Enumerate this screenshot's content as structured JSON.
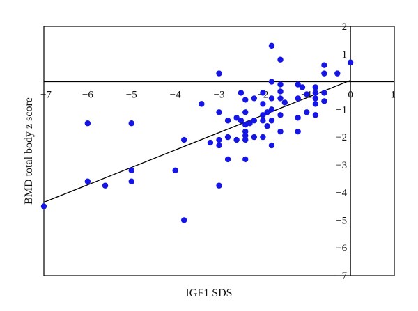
{
  "chart_data": {
    "type": "scatter",
    "xlabel": "IGF1 SDS",
    "ylabel": "BMD total body z score",
    "xlim": [
      -7,
      1
    ],
    "ylim": [
      -7,
      2
    ],
    "x_ticks": [
      -7,
      -6,
      -5,
      -4,
      -3,
      -2,
      -1,
      0,
      1
    ],
    "y_ticks": [
      2,
      1,
      -1,
      -2,
      -3,
      -4,
      -5,
      -6,
      -7
    ],
    "grid": false,
    "legend": "none",
    "colors": {
      "points": "#1515e6",
      "line": "#000000",
      "axes": "#000000"
    },
    "trendline": {
      "x": [
        -7,
        0
      ],
      "y": [
        -4.35,
        0.05
      ]
    },
    "points": [
      [
        -7,
        -4.5
      ],
      [
        -6,
        -1.5
      ],
      [
        -6,
        -3.6
      ],
      [
        -5.6,
        -3.75
      ],
      [
        -5,
        -1.5
      ],
      [
        -5,
        -3.2
      ],
      [
        -5,
        -3.6
      ],
      [
        -4,
        -3.2
      ],
      [
        -3.8,
        -2.1
      ],
      [
        -3.8,
        -5
      ],
      [
        -3.4,
        -0.8
      ],
      [
        -3.2,
        -2.2
      ],
      [
        -3,
        0.3
      ],
      [
        -3,
        -1.1
      ],
      [
        -3,
        -2.1
      ],
      [
        -3,
        -2.3
      ],
      [
        -3,
        -3.75
      ],
      [
        -2.8,
        -1.4
      ],
      [
        -2.8,
        -2
      ],
      [
        -2.8,
        -2.8
      ],
      [
        -2.6,
        -1.3
      ],
      [
        -2.6,
        -2.1
      ],
      [
        -2.5,
        -0.4
      ],
      [
        -2.5,
        -1.4
      ],
      [
        -2.4,
        -0.65
      ],
      [
        -2.4,
        -1.1
      ],
      [
        -2.4,
        -1.55
      ],
      [
        -2.4,
        -1.8
      ],
      [
        -2.4,
        -1.95
      ],
      [
        -2.4,
        -2.1
      ],
      [
        -2.4,
        -2.8
      ],
      [
        -2.3,
        -1.5
      ],
      [
        -2.2,
        -0.6
      ],
      [
        -2.2,
        -1.4
      ],
      [
        -2.2,
        -2
      ],
      [
        -2,
        -0.4
      ],
      [
        -2,
        -0.8
      ],
      [
        -2,
        -1.2
      ],
      [
        -2,
        -1.4
      ],
      [
        -2,
        -2
      ],
      [
        -1.9,
        -1.1
      ],
      [
        -1.9,
        -1.6
      ],
      [
        -1.8,
        1.3
      ],
      [
        -1.8,
        0
      ],
      [
        -1.8,
        -0.6
      ],
      [
        -1.8,
        -1
      ],
      [
        -1.8,
        -1.4
      ],
      [
        -1.8,
        -2.3
      ],
      [
        -1.6,
        0.8
      ],
      [
        -1.6,
        -0.1
      ],
      [
        -1.6,
        -0.35
      ],
      [
        -1.6,
        -0.6
      ],
      [
        -1.6,
        -1.2
      ],
      [
        -1.6,
        -1.8
      ],
      [
        -1.5,
        -0.75
      ],
      [
        -1.2,
        -0.1
      ],
      [
        -1.2,
        -0.6
      ],
      [
        -1.2,
        -1.3
      ],
      [
        -1.2,
        -1.8
      ],
      [
        -1.1,
        -0.2
      ],
      [
        -1,
        -0.45
      ],
      [
        -1,
        -1.1
      ],
      [
        -0.8,
        -0.2
      ],
      [
        -0.8,
        -0.4
      ],
      [
        -0.8,
        -0.6
      ],
      [
        -0.8,
        -0.8
      ],
      [
        -0.8,
        -1.2
      ],
      [
        -0.6,
        0.6
      ],
      [
        -0.6,
        0.3
      ],
      [
        -0.6,
        -0.4
      ],
      [
        -0.6,
        -0.7
      ],
      [
        -0.3,
        0.3
      ],
      [
        0,
        0.7
      ]
    ]
  }
}
